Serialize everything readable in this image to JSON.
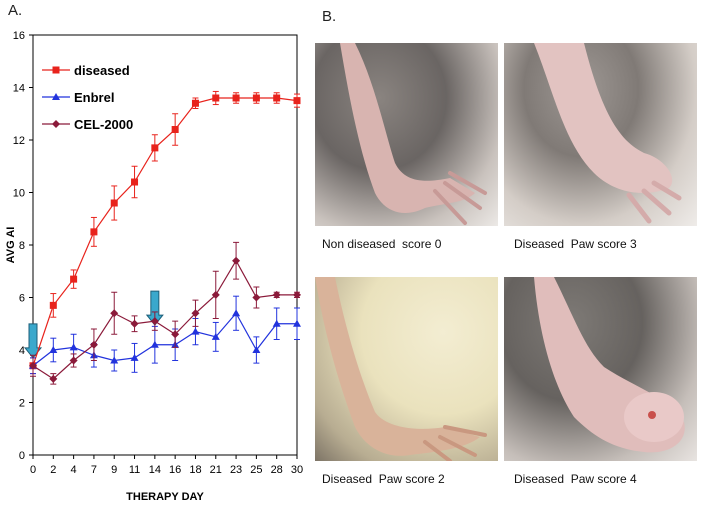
{
  "panel_a_label": "A.",
  "panel_b_label": "B.",
  "chart_data": {
    "type": "line",
    "xlabel": "THERAPY DAY",
    "ylabel": "AVG AI",
    "ylim": [
      0,
      16
    ],
    "yticks": [
      "0",
      "2",
      "4",
      "6",
      "8",
      "10",
      "12",
      "14",
      "16"
    ],
    "categories": [
      "0",
      "2",
      "4",
      "7",
      "9",
      "11",
      "14",
      "16",
      "18",
      "21",
      "23",
      "25",
      "28",
      "30"
    ],
    "legend_position": "top-left",
    "grid": false,
    "series": [
      {
        "name": "diseased",
        "color": "#e8231c",
        "marker": "square",
        "values": [
          3.4,
          5.7,
          6.7,
          8.5,
          9.6,
          10.4,
          11.7,
          12.4,
          13.4,
          13.6,
          13.6,
          13.6,
          13.6,
          13.5
        ],
        "errors": [
          0.3,
          0.45,
          0.35,
          0.55,
          0.65,
          0.6,
          0.5,
          0.6,
          0.2,
          0.25,
          0.2,
          0.2,
          0.2,
          0.25
        ]
      },
      {
        "name": "Enbrel",
        "color": "#2233dd",
        "marker": "triangle",
        "values": [
          3.4,
          4.0,
          4.1,
          3.8,
          3.6,
          3.7,
          4.2,
          4.2,
          4.7,
          4.5,
          5.4,
          4.0,
          5.0,
          5.0
        ],
        "errors": [
          0.3,
          0.45,
          0.5,
          0.45,
          0.4,
          0.55,
          0.7,
          0.6,
          0.5,
          0.55,
          0.65,
          0.5,
          0.6,
          0.6
        ]
      },
      {
        "name": "CEL-2000",
        "color": "#8b1a3a",
        "marker": "diamond",
        "values": [
          3.4,
          2.9,
          3.6,
          4.2,
          5.4,
          5.0,
          5.1,
          4.6,
          5.4,
          6.1,
          7.4,
          6.0,
          6.1,
          6.1
        ],
        "errors": [
          0.4,
          0.2,
          0.25,
          0.6,
          0.8,
          0.3,
          0.35,
          0.5,
          0.5,
          0.9,
          0.7,
          0.4,
          0.1,
          0.1
        ]
      }
    ],
    "arrows": [
      {
        "day": "0",
        "color": "#3aa8cc"
      },
      {
        "day": "14",
        "color": "#3aa8cc"
      }
    ]
  },
  "photos": [
    {
      "caption": "Non diseased  score 0",
      "icon": "mouse-paw-photo"
    },
    {
      "caption": "Diseased  Paw score 3",
      "icon": "mouse-paw-photo"
    },
    {
      "caption": "Diseased  Paw score 2",
      "icon": "mouse-paw-photo"
    },
    {
      "caption": "Diseased  Paw score 4",
      "icon": "mouse-paw-photo"
    }
  ]
}
